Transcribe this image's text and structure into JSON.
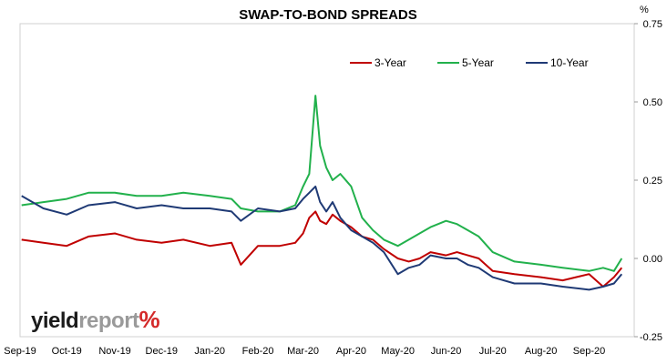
{
  "chart_data": {
    "type": "line",
    "title": "SWAP-TO-BOND SPREADS",
    "yunit": "%",
    "ylim": [
      -0.25,
      0.75
    ],
    "yticks": [
      -0.25,
      0.0,
      0.25,
      0.5,
      0.75
    ],
    "ytick_labels": [
      "-0.25",
      "0.00",
      "0.25",
      "0.50",
      "0.75"
    ],
    "xlim": [
      "2019-09-01",
      "2020-09-30"
    ],
    "xticks": [
      "2019-09-01",
      "2019-10-01",
      "2019-11-01",
      "2019-12-01",
      "2020-01-01",
      "2020-02-01",
      "2020-03-01",
      "2020-04-01",
      "2020-05-01",
      "2020-06-01",
      "2020-07-01",
      "2020-08-01",
      "2020-09-01"
    ],
    "xtick_labels": [
      "Sep-19",
      "Oct-19",
      "Nov-19",
      "Dec-19",
      "Jan-20",
      "Feb-20",
      "Mar-20",
      "Apr-20",
      "May-20",
      "Jun-20",
      "Jul-20",
      "Aug-20",
      "Sep-20"
    ],
    "grid": false,
    "legend_position": "top-right",
    "x": [
      "2019-09-02",
      "2019-09-16",
      "2019-10-01",
      "2019-10-15",
      "2019-11-01",
      "2019-11-15",
      "2019-12-01",
      "2019-12-15",
      "2020-01-01",
      "2020-01-15",
      "2020-01-21",
      "2020-02-01",
      "2020-02-15",
      "2020-02-25",
      "2020-03-01",
      "2020-03-05",
      "2020-03-09",
      "2020-03-12",
      "2020-03-16",
      "2020-03-20",
      "2020-03-25",
      "2020-04-01",
      "2020-04-08",
      "2020-04-15",
      "2020-04-22",
      "2020-05-01",
      "2020-05-08",
      "2020-05-15",
      "2020-05-22",
      "2020-06-01",
      "2020-06-08",
      "2020-06-15",
      "2020-06-22",
      "2020-07-01",
      "2020-07-15",
      "2020-08-01",
      "2020-08-15",
      "2020-09-01",
      "2020-09-10",
      "2020-09-17",
      "2020-09-22"
    ],
    "series": [
      {
        "name": "3-Year",
        "color": "#c00000",
        "values": [
          0.06,
          0.05,
          0.04,
          0.07,
          0.08,
          0.06,
          0.05,
          0.06,
          0.04,
          0.05,
          -0.02,
          0.04,
          0.04,
          0.05,
          0.08,
          0.13,
          0.15,
          0.12,
          0.11,
          0.14,
          0.12,
          0.1,
          0.07,
          0.06,
          0.03,
          0.0,
          -0.01,
          0.0,
          0.02,
          0.01,
          0.02,
          0.01,
          0.0,
          -0.04,
          -0.05,
          -0.06,
          -0.07,
          -0.05,
          -0.09,
          -0.06,
          -0.03
        ]
      },
      {
        "name": "5-Year",
        "color": "#22b14c",
        "values": [
          0.17,
          0.18,
          0.19,
          0.21,
          0.21,
          0.2,
          0.2,
          0.21,
          0.2,
          0.19,
          0.16,
          0.15,
          0.15,
          0.17,
          0.23,
          0.27,
          0.52,
          0.36,
          0.29,
          0.25,
          0.27,
          0.23,
          0.13,
          0.09,
          0.06,
          0.04,
          0.06,
          0.08,
          0.1,
          0.12,
          0.11,
          0.09,
          0.07,
          0.02,
          -0.01,
          -0.02,
          -0.03,
          -0.04,
          -0.03,
          -0.04,
          0.0
        ]
      },
      {
        "name": "10-Year",
        "color": "#1f3a75",
        "values": [
          0.2,
          0.16,
          0.14,
          0.17,
          0.18,
          0.16,
          0.17,
          0.16,
          0.16,
          0.15,
          0.12,
          0.16,
          0.15,
          0.16,
          0.19,
          0.21,
          0.23,
          0.18,
          0.15,
          0.18,
          0.13,
          0.09,
          0.07,
          0.05,
          0.02,
          -0.05,
          -0.03,
          -0.02,
          0.01,
          0.0,
          0.0,
          -0.02,
          -0.03,
          -0.06,
          -0.08,
          -0.08,
          -0.09,
          -0.1,
          -0.09,
          -0.08,
          -0.05
        ]
      }
    ]
  },
  "watermark": {
    "part1": "yield",
    "part2": "report",
    "part3": "%"
  }
}
